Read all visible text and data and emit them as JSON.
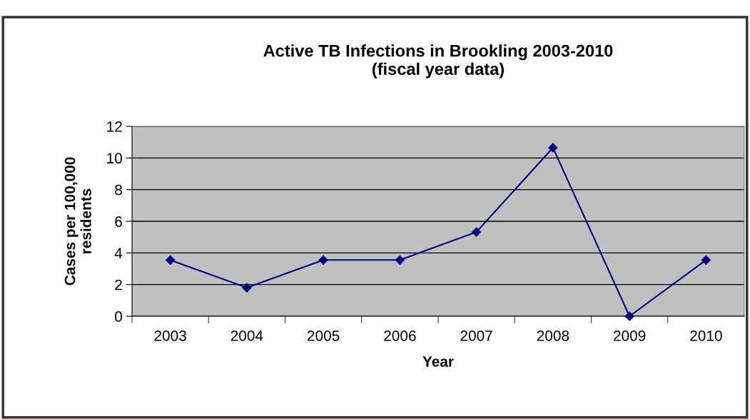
{
  "chart_data": {
    "type": "line",
    "title": "Active TB Infections in Brookling 2003-2010\n(fiscal year data)",
    "xlabel": "Year",
    "ylabel": "Cases per 100,000\nresidents",
    "categories": [
      "2003",
      "2004",
      "2005",
      "2006",
      "2007",
      "2008",
      "2009",
      "2010"
    ],
    "series": [
      {
        "color": "#000080",
        "values": [
          3.55,
          1.8,
          3.55,
          3.55,
          5.32,
          10.65,
          0,
          3.55
        ]
      }
    ],
    "ylim": [
      0,
      12
    ],
    "yticks": [
      0,
      2,
      4,
      6,
      8,
      10,
      12
    ],
    "grid": "y",
    "marker": "diamond",
    "line_style": "solid"
  }
}
